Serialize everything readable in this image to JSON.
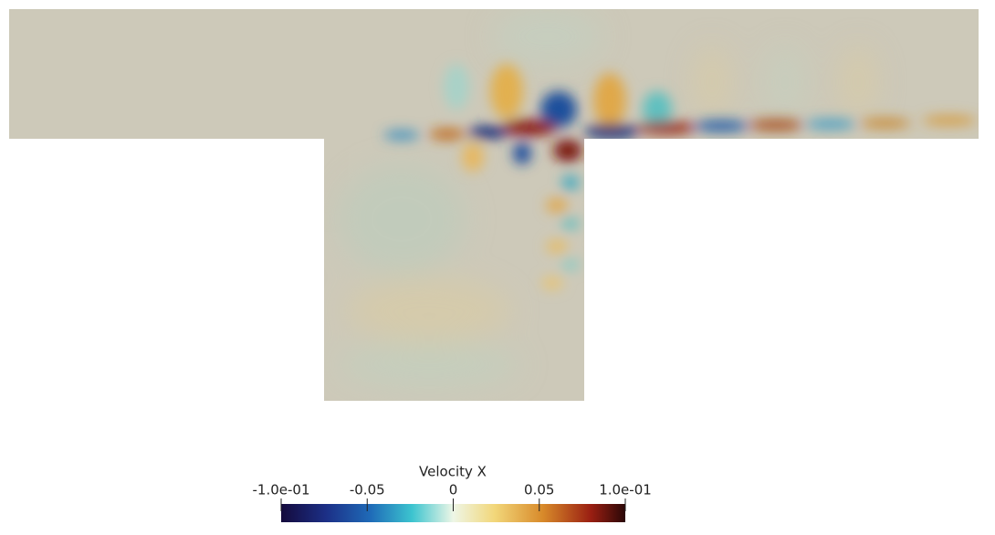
{
  "colorbar": {
    "title": "Velocity X",
    "ticks": [
      {
        "value": -0.1,
        "label": "-1.0e-01"
      },
      -0.05,
      0,
      0.05,
      {
        "value": 0.1,
        "label": "1.0e-01"
      }
    ]
  }
}
